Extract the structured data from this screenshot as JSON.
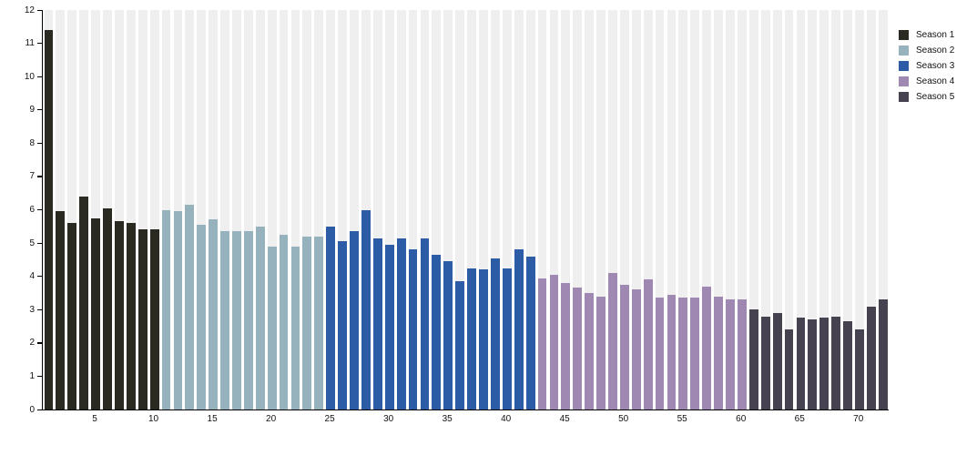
{
  "chart_data": {
    "type": "bar",
    "title": "",
    "xlabel": "",
    "ylabel": "",
    "ylim": [
      0,
      12
    ],
    "y_ticks": [
      0,
      1,
      2,
      3,
      4,
      5,
      6,
      7,
      8,
      9,
      10,
      11,
      12
    ],
    "x_ticks": [
      5,
      10,
      15,
      20,
      25,
      30,
      35,
      40,
      45,
      50,
      55,
      60,
      65,
      70
    ],
    "n_bars": 72,
    "grid": "off",
    "background_stripe_color": "#efefef",
    "axis_color": "#000000",
    "legend_position": "top-right",
    "series": [
      {
        "name": "Season 1",
        "color": "#2b2a22",
        "first_x": 1,
        "values": [
          11.4,
          5.95,
          5.6,
          6.4,
          5.75,
          6.05,
          5.65,
          5.6,
          5.4,
          5.4
        ]
      },
      {
        "name": "Season 2",
        "color": "#96b2bc",
        "first_x": 11,
        "values": [
          6.0,
          5.95,
          6.15,
          5.55,
          5.7,
          5.35,
          5.35,
          5.35,
          5.5,
          4.9,
          5.25,
          4.9,
          5.2,
          5.2
        ]
      },
      {
        "name": "Season 3",
        "color": "#2c5ca6",
        "first_x": 25,
        "values": [
          5.5,
          5.05,
          5.35,
          6.0,
          5.15,
          4.95,
          5.15,
          4.8,
          5.15,
          4.65,
          4.45,
          3.85,
          4.25,
          4.2,
          4.55,
          4.25,
          4.8,
          4.6
        ]
      },
      {
        "name": "Season 4",
        "color": "#9f89b3",
        "first_x": 43,
        "values": [
          3.95,
          4.05,
          3.8,
          3.65,
          3.5,
          3.4,
          4.1,
          3.75,
          3.6,
          3.9,
          3.35,
          3.45,
          3.35,
          3.35,
          3.7,
          3.4,
          3.3,
          3.3
        ]
      },
      {
        "name": "Season 5",
        "color": "#474250",
        "first_x": 61,
        "values": [
          3.0,
          2.8,
          2.9,
          2.4,
          2.75,
          2.7,
          2.75,
          2.8,
          2.65,
          2.4,
          3.1,
          3.3
        ]
      }
    ]
  },
  "legend": {
    "items": [
      {
        "label": "Season 1",
        "color": "#2b2a22"
      },
      {
        "label": "Season 2",
        "color": "#96b2bc"
      },
      {
        "label": "Season 3",
        "color": "#2c5ca6"
      },
      {
        "label": "Season 4",
        "color": "#9f89b3"
      },
      {
        "label": "Season 5",
        "color": "#474250"
      }
    ]
  }
}
